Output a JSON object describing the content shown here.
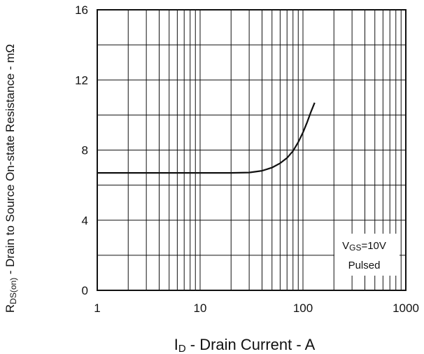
{
  "chart_data": {
    "type": "line",
    "x_scale": "log",
    "xlim": [
      1,
      1000
    ],
    "ylim": [
      0,
      16
    ],
    "grid": true,
    "x_ticks": [
      "1",
      "10",
      "100",
      "1000"
    ],
    "y_ticks": [
      "0",
      "4",
      "8",
      "12",
      "16"
    ],
    "xlabel": {
      "main": "I",
      "sub": "D",
      "rest": " - Drain Current - A"
    },
    "ylabel": {
      "main": "R",
      "sub": "DS(on)",
      "rest": " - Drain to Source On-state Resistance - mΩ"
    },
    "legend": {
      "position": "bottom-right",
      "line1_main": "V",
      "line1_sub": "GS",
      "line1_rest": "=10V",
      "line2": "Pulsed"
    },
    "series": [
      {
        "x": [
          1,
          2,
          5,
          10,
          20,
          30,
          40,
          50,
          60,
          70,
          80,
          90,
          100,
          110,
          120,
          130
        ],
        "y": [
          6.7,
          6.7,
          6.7,
          6.7,
          6.7,
          6.72,
          6.82,
          7.0,
          7.25,
          7.55,
          7.95,
          8.45,
          9.0,
          9.6,
          10.2,
          10.7
        ]
      }
    ]
  }
}
